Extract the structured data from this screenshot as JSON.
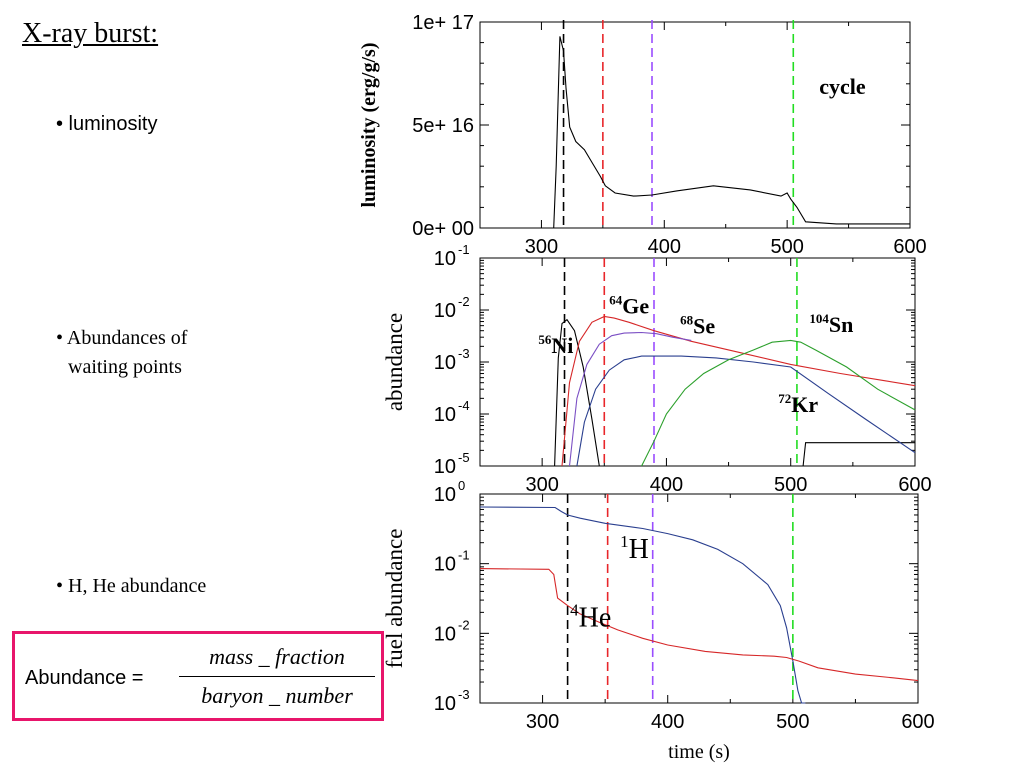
{
  "slide": {
    "title": "X-ray burst:",
    "bullets": [
      "• luminosity",
      "• Abundances of",
      "waiting points",
      "• H, He abundance"
    ],
    "formula": {
      "lhs": "Abundance =",
      "numerator": "mass _ fraction",
      "denominator": "baryon _ number",
      "border_color": "#e8156b"
    }
  },
  "chart_data": [
    {
      "type": "line",
      "ylabel": "luminosity (erg/g/s)",
      "xlim": [
        250,
        600
      ],
      "ylim": [
        0,
        1e+17
      ],
      "x_ticks": [
        "300",
        "400",
        "500",
        "600"
      ],
      "y_ticks": [
        "0e+ 00",
        "5e+ 16",
        "1e+ 17"
      ],
      "vlines": [
        {
          "x": 318,
          "color": "#000000"
        },
        {
          "x": 350,
          "color": "#e8262a"
        },
        {
          "x": 390,
          "color": "#9a4dff"
        },
        {
          "x": 505,
          "color": "#22dd22"
        }
      ],
      "annotations": [
        {
          "text": "cycle",
          "x": 545,
          "y": 6.5e+16,
          "color": "#22dd22"
        }
      ],
      "series": [
        {
          "color": "#000000",
          "x": [
            250,
            310,
            312,
            315,
            318,
            320,
            323,
            328,
            335,
            342,
            348,
            352,
            360,
            375,
            390,
            410,
            440,
            470,
            495,
            500,
            503,
            508,
            515,
            540,
            570,
            600
          ],
          "y": [
            0,
            0,
            3e+16,
            9.3e+16,
            8.6e+16,
            6.8e+16,
            4.9e+16,
            4.2e+16,
            3.8e+16,
            3.1e+16,
            2.5e+16,
            2.05e+16,
            1.7e+16,
            1.55e+16,
            1.6e+16,
            1.8e+16,
            2.05e+16,
            1.85e+16,
            1.55e+16,
            1.7e+16,
            1.4e+16,
            1e+16,
            3000000000000000.0,
            2000000000000000.0,
            2000000000000000.0,
            2000000000000000.0
          ]
        }
      ]
    },
    {
      "type": "line",
      "ylabel": "abundance",
      "xlim": [
        250,
        600
      ],
      "ylim": [
        1e-05,
        0.1
      ],
      "yscale": "log",
      "x_ticks": [
        "300",
        "400",
        "500",
        "600"
      ],
      "y_ticks": [
        {
          "v": 1e-05,
          "base": "10",
          "exp": "-5"
        },
        {
          "v": 0.0001,
          "base": "10",
          "exp": "-4"
        },
        {
          "v": 0.001,
          "base": "10",
          "exp": "-3"
        },
        {
          "v": 0.01,
          "base": "10",
          "exp": "-2"
        },
        {
          "v": 0.1,
          "base": "10",
          "exp": "-1"
        }
      ],
      "vlines": [
        {
          "x": 318,
          "color": "#000000"
        },
        {
          "x": 350,
          "color": "#e8262a"
        },
        {
          "x": 390,
          "color": "#9a4dff"
        },
        {
          "x": 505,
          "color": "#22dd22"
        }
      ],
      "labels": [
        {
          "sup": "56",
          "text": "Ni",
          "x": 297,
          "y": 0.0015,
          "color": "#000000"
        },
        {
          "sup": "64",
          "text": "Ge",
          "x": 354,
          "y": 0.0085,
          "color": "#e8262a"
        },
        {
          "sup": "68",
          "text": "Se",
          "x": 411,
          "y": 0.0035,
          "color": "#9a4dff"
        },
        {
          "sup": "104",
          "text": "Sn",
          "x": 515,
          "y": 0.0038,
          "color": "#22aa22"
        },
        {
          "sup": "72",
          "text": "Kr",
          "x": 490,
          "y": 0.00011,
          "color": "#0000cc"
        }
      ],
      "series": [
        {
          "name": "Ni",
          "color": "#000000",
          "x": [
            310,
            313,
            316,
            320,
            326,
            333,
            340,
            346,
            510,
            512,
            600
          ],
          "y": [
            1e-05,
            0.0012,
            0.0055,
            0.0065,
            0.004,
            0.0008,
            8e-05,
            1e-05,
            1e-05,
            2.8e-05,
            2.8e-05
          ]
        },
        {
          "name": "Ge",
          "color": "#d62728",
          "x": [
            316,
            322,
            330,
            340,
            350,
            358,
            370,
            390,
            420,
            460,
            500,
            540,
            600
          ],
          "y": [
            1e-05,
            0.0004,
            0.0025,
            0.0058,
            0.0075,
            0.007,
            0.0058,
            0.004,
            0.0025,
            0.0015,
            0.0009,
            0.0006,
            0.00035
          ]
        },
        {
          "name": "Se",
          "color": "#7b4fc4",
          "x": [
            322,
            328,
            336,
            346,
            356,
            366,
            380,
            392,
            405,
            420
          ],
          "y": [
            1e-05,
            0.0002,
            0.0009,
            0.0022,
            0.0032,
            0.0036,
            0.0037,
            0.0035,
            0.003,
            0.0026
          ]
        },
        {
          "name": "Kr",
          "color": "#2a3f8f",
          "x": [
            328,
            334,
            343,
            354,
            366,
            380,
            395,
            412,
            440,
            470,
            500,
            530,
            560,
            600
          ],
          "y": [
            1e-05,
            7e-05,
            0.0003,
            0.0007,
            0.0011,
            0.0013,
            0.0013,
            0.0013,
            0.0012,
            0.001,
            0.0008,
            0.00025,
            8e-05,
            1.8e-05
          ]
        },
        {
          "name": "Sn",
          "color": "#2ca02c",
          "x": [
            380,
            390,
            400,
            415,
            430,
            450,
            470,
            485,
            500,
            508,
            520,
            545,
            570,
            600
          ],
          "y": [
            1e-05,
            3e-05,
            0.0001,
            0.0003,
            0.0006,
            0.0011,
            0.0017,
            0.0024,
            0.0026,
            0.0024,
            0.0017,
            0.0008,
            0.0003,
            0.00012
          ]
        }
      ]
    },
    {
      "type": "line",
      "xlabel": "time (s)",
      "ylabel": "fuel abundance",
      "xlim": [
        250,
        600
      ],
      "ylim": [
        0.001,
        1
      ],
      "yscale": "log",
      "x_ticks": [
        "300",
        "400",
        "500",
        "600"
      ],
      "y_ticks": [
        {
          "v": 0.001,
          "base": "10",
          "exp": "-3"
        },
        {
          "v": 0.01,
          "base": "10",
          "exp": "-2"
        },
        {
          "v": 0.1,
          "base": "10",
          "exp": "-1"
        },
        {
          "v": 1,
          "base": "10",
          "exp": "0"
        }
      ],
      "vlines": [
        {
          "x": 320,
          "color": "#000000"
        },
        {
          "x": 352,
          "color": "#e8262a"
        },
        {
          "x": 388,
          "color": "#9a4dff"
        },
        {
          "x": 500,
          "color": "#22dd22"
        }
      ],
      "labels": [
        {
          "sup": "1",
          "text": "H",
          "x": 362,
          "y": 0.12,
          "color": "#0000cc"
        },
        {
          "sup": "4",
          "text": "He",
          "x": 322,
          "y": 0.0125,
          "color": "#e8262a"
        }
      ],
      "series": [
        {
          "name": "H",
          "color": "#2a3f8f",
          "x": [
            250,
            310,
            315,
            320,
            330,
            350,
            380,
            400,
            420,
            440,
            460,
            480,
            490,
            495,
            500,
            504,
            507,
            510
          ],
          "y": [
            0.65,
            0.64,
            0.56,
            0.5,
            0.45,
            0.38,
            0.32,
            0.27,
            0.22,
            0.16,
            0.1,
            0.05,
            0.025,
            0.012,
            0.004,
            0.0015,
            0.0008,
            0.0005
          ]
        },
        {
          "name": "He",
          "color": "#d62728",
          "x": [
            250,
            305,
            309,
            312,
            320,
            330,
            345,
            360,
            380,
            400,
            430,
            460,
            485,
            495,
            505,
            520,
            550,
            580,
            600
          ],
          "y": [
            0.085,
            0.083,
            0.07,
            0.032,
            0.025,
            0.019,
            0.0145,
            0.0112,
            0.0085,
            0.0068,
            0.0055,
            0.0049,
            0.0047,
            0.0045,
            0.004,
            0.0032,
            0.0026,
            0.0023,
            0.0021
          ]
        }
      ]
    }
  ]
}
